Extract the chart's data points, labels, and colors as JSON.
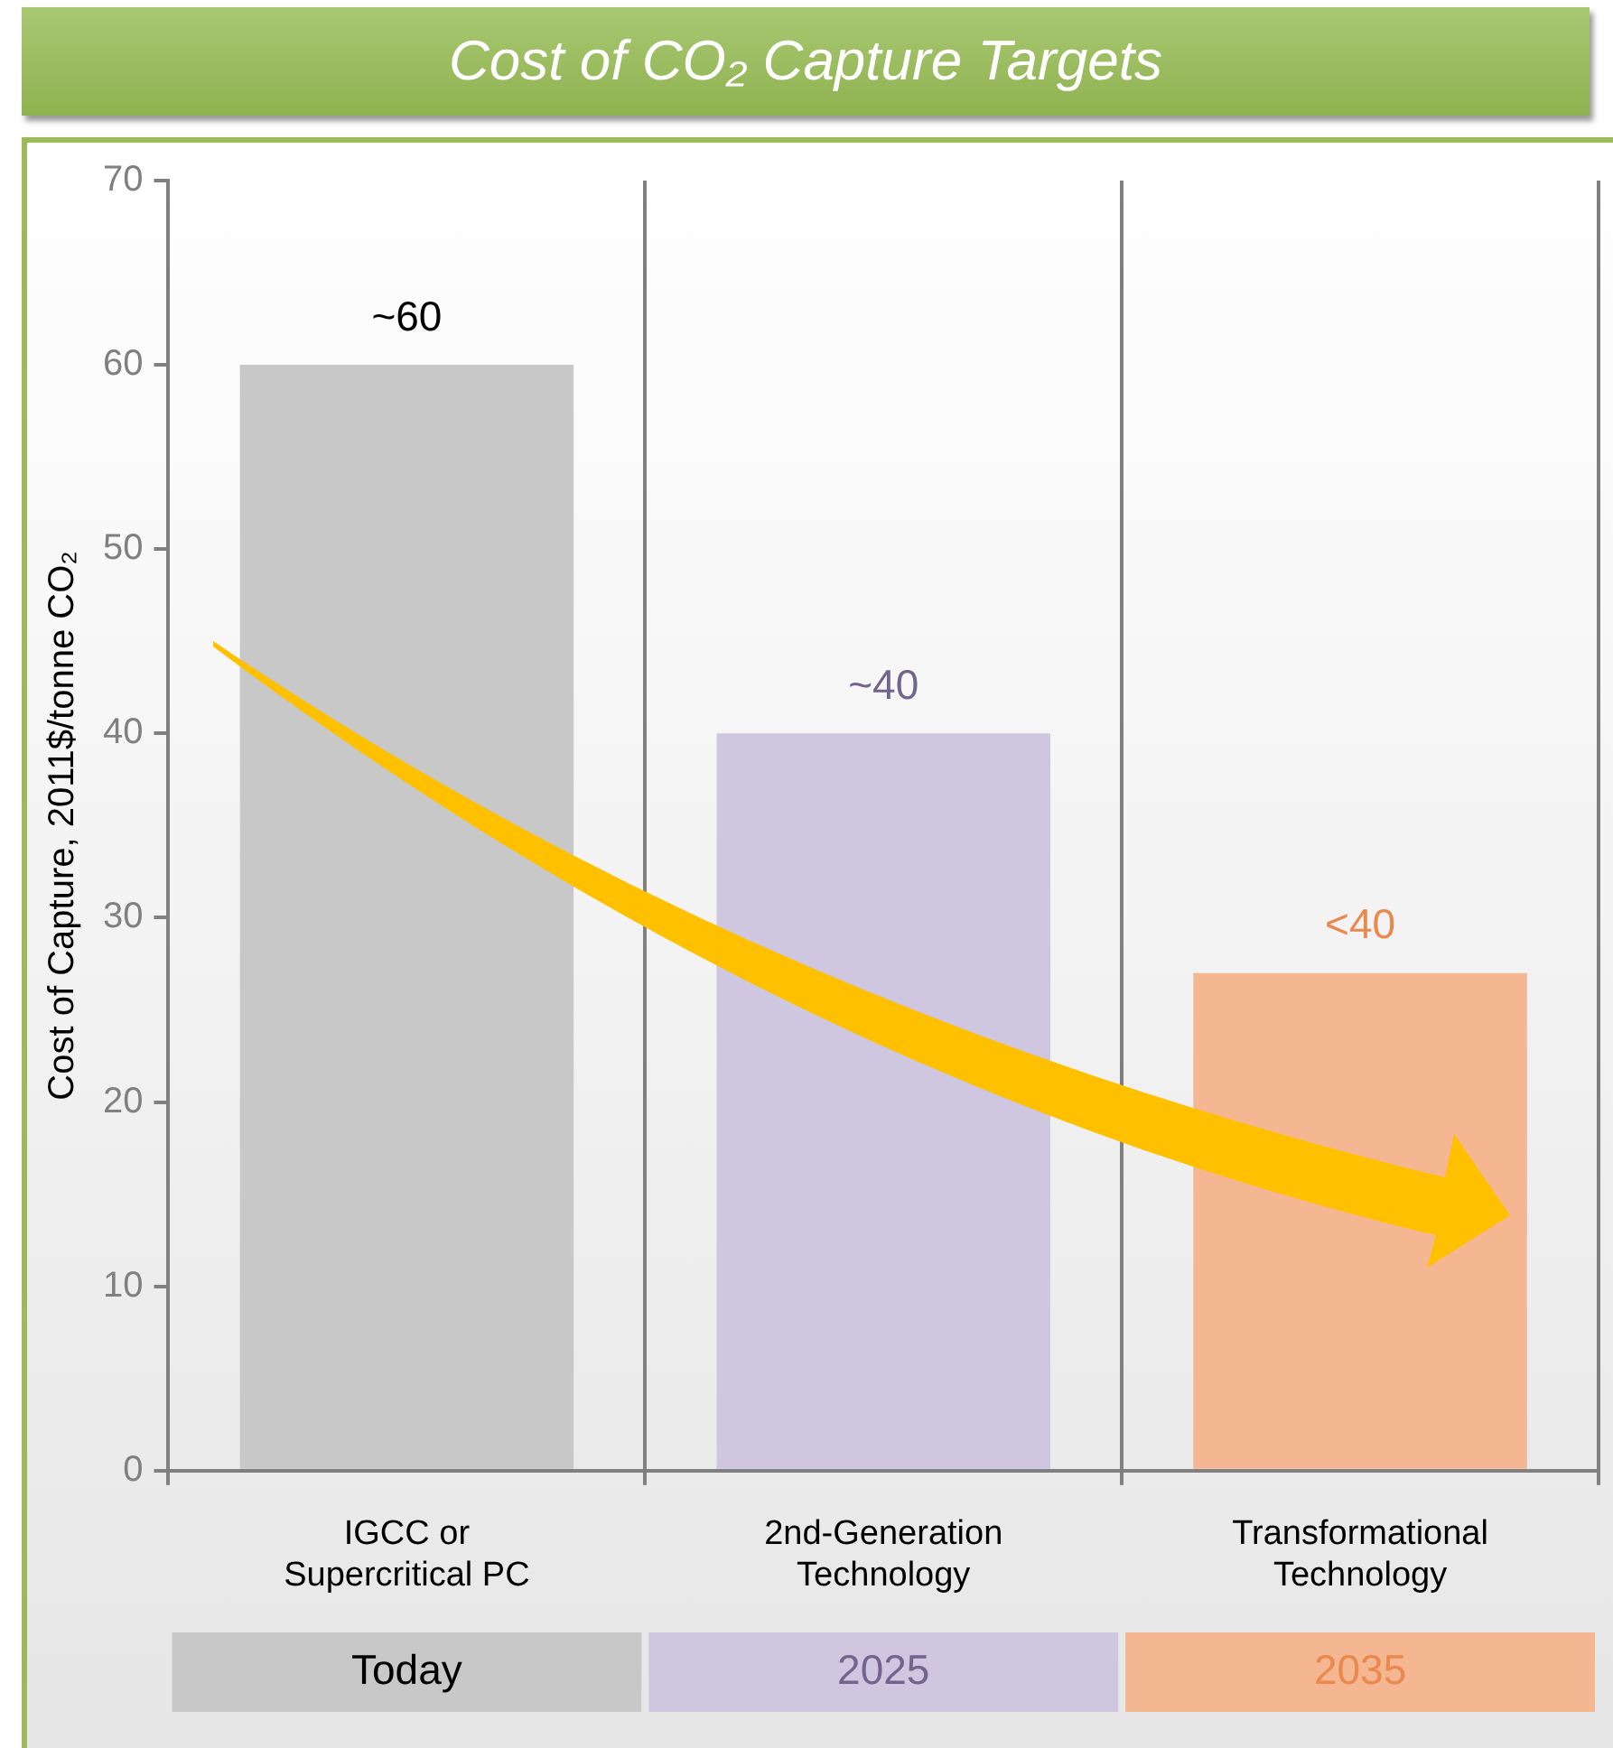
{
  "chart_data": {
    "type": "bar",
    "title": "Cost of CO₂ Capture Targets",
    "ylabel": "Cost of Capture, 2011$/tonne CO₂",
    "categories": [
      "IGCC or Supercritical PC",
      "2nd-Generation Technology",
      "Transformational Technology"
    ],
    "values": [
      60,
      40,
      27
    ],
    "colors": [
      "#c8c8c8",
      "#cfc6e0",
      "#f4b792"
    ],
    "value_labels": [
      "~60",
      "~40",
      "<40"
    ],
    "annotations": [
      "Today",
      "2025",
      "2035"
    ],
    "ylim": [
      0,
      70
    ],
    "yticks": [
      0,
      10,
      20,
      30,
      40,
      50,
      60,
      70
    ],
    "grid": "x",
    "legend": false
  }
}
